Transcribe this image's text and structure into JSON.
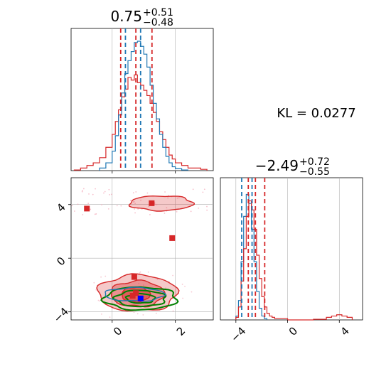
{
  "figure": {
    "kl_text": "KL = 0.0277",
    "title_1": {
      "value": "0.75",
      "sup": "+0.51",
      "sub": "−0.48"
    },
    "title_2": {
      "value": "−2.49",
      "sup": "+0.72",
      "sub": "−0.55"
    }
  },
  "colors": {
    "red": "#d62728",
    "blue": "#1f77b4",
    "green": "#008000",
    "grid": "#b0b0b0"
  },
  "chart_data": [
    {
      "type": "histogram",
      "panel": "marginal-1",
      "xlim": [
        -1.3,
        3.2
      ],
      "xticks": [
        0,
        2
      ],
      "dashed_lines_red": [
        0.27,
        0.75,
        1.26
      ],
      "dashed_lines_blue": [
        0.42,
        0.9
      ],
      "series": [
        {
          "color": "red",
          "bins": [
            -1.2,
            -1.0,
            -0.8,
            -0.6,
            -0.4,
            -0.2,
            0.0,
            0.1,
            0.2,
            0.3,
            0.4,
            0.5,
            0.6,
            0.7,
            0.8,
            0.9,
            1.0,
            1.1,
            1.2,
            1.3,
            1.4,
            1.5,
            1.6,
            1.7,
            1.8,
            1.9,
            2.0,
            2.2,
            2.4,
            2.6,
            2.8,
            3.0
          ],
          "counts": [
            0.005,
            0.02,
            0.04,
            0.06,
            0.1,
            0.18,
            0.28,
            0.38,
            0.47,
            0.57,
            0.63,
            0.72,
            0.7,
            0.74,
            0.68,
            0.66,
            0.62,
            0.58,
            0.52,
            0.45,
            0.38,
            0.3,
            0.24,
            0.18,
            0.12,
            0.09,
            0.06,
            0.04,
            0.02,
            0.02,
            0.01
          ]
        },
        {
          "color": "blue",
          "bins": [
            -0.4,
            -0.2,
            0.0,
            0.1,
            0.2,
            0.3,
            0.4,
            0.5,
            0.6,
            0.7,
            0.8,
            0.9,
            1.0,
            1.1,
            1.2,
            1.3,
            1.4,
            1.5,
            1.6,
            1.7,
            1.8,
            1.9,
            2.0,
            2.2,
            2.4
          ],
          "counts": [
            0.02,
            0.06,
            0.15,
            0.27,
            0.43,
            0.6,
            0.75,
            0.85,
            0.92,
            0.99,
            1.0,
            0.96,
            0.9,
            0.8,
            0.66,
            0.52,
            0.4,
            0.28,
            0.18,
            0.11,
            0.06,
            0.03,
            0.015,
            0.005
          ]
        }
      ]
    },
    {
      "type": "scatter",
      "panel": "joint",
      "xlim": [
        -1.3,
        3.2
      ],
      "ylim": [
        -4.6,
        6.0
      ],
      "xticks": [
        0,
        2
      ],
      "yticks": [
        -4,
        0,
        4
      ],
      "red_squares": [
        [
          -0.8,
          3.7
        ],
        [
          1.25,
          4.1
        ],
        [
          1.9,
          1.5
        ],
        [
          0.7,
          -1.4
        ],
        [
          0.75,
          -2.6
        ],
        [
          0.65,
          -2.8
        ]
      ],
      "blue_squares": [
        [
          0.9,
          -3.0
        ]
      ],
      "contours": [
        {
          "color": "red",
          "fill": true,
          "cx": 0.8,
          "cy": -2.6,
          "rx": 1.25,
          "ry": 1.35
        },
        {
          "color": "red",
          "fill": true,
          "cx": 0.8,
          "cy": -2.65,
          "rx": 0.85,
          "ry": 0.95
        },
        {
          "color": "red",
          "fill": true,
          "cx": 0.75,
          "cy": -2.7,
          "rx": 0.45,
          "ry": 0.55
        },
        {
          "color": "red",
          "fill": true,
          "cx": 1.55,
          "cy": 4.1,
          "rx": 1.0,
          "ry": 0.55
        },
        {
          "color": "green",
          "fill": false,
          "cx": 0.9,
          "cy": -3.0,
          "rx": 1.15,
          "ry": 0.85
        },
        {
          "color": "green",
          "fill": false,
          "cx": 0.9,
          "cy": -3.0,
          "rx": 0.8,
          "ry": 0.6
        },
        {
          "color": "green",
          "fill": false,
          "cx": 0.9,
          "cy": -3.0,
          "rx": 0.45,
          "ry": 0.35
        },
        {
          "color": "blue",
          "fill": false,
          "cx": 0.7,
          "cy": -2.7,
          "rx": 0.95,
          "ry": 0.5
        }
      ]
    },
    {
      "type": "histogram",
      "panel": "marginal-2",
      "xlim": [
        -5.2,
        5.8
      ],
      "xticks": [
        -4,
        0,
        4
      ],
      "dashed_lines_red": [
        -3.04,
        -2.49,
        -1.77
      ],
      "dashed_lines_blue": [
        -3.55,
        -2.75
      ],
      "series": [
        {
          "color": "blue",
          "bins": [
            -4.0,
            -3.8,
            -3.6,
            -3.4,
            -3.2,
            -3.0,
            -2.8,
            -2.6,
            -2.4,
            -2.2,
            -2.0,
            -1.8,
            -1.6
          ],
          "counts": [
            0.03,
            0.15,
            0.45,
            0.8,
            0.97,
            0.9,
            0.7,
            0.45,
            0.22,
            0.09,
            0.03,
            0.01
          ]
        },
        {
          "color": "red",
          "bins": [
            -4.0,
            -3.8,
            -3.6,
            -3.4,
            -3.2,
            -3.0,
            -2.8,
            -2.6,
            -2.4,
            -2.2,
            -2.0,
            -1.8,
            -1.6,
            -1.4,
            -1.2,
            -1.0,
            -0.5,
            0.0,
            1.0,
            2.0,
            3.0,
            3.4,
            3.8,
            4.2,
            4.6,
            5.0
          ],
          "counts": [
            0.02,
            0.1,
            0.3,
            0.55,
            0.8,
            0.92,
            0.85,
            0.7,
            0.5,
            0.32,
            0.18,
            0.1,
            0.05,
            0.03,
            0.02,
            0.01,
            0.01,
            0.0,
            0.0,
            0.005,
            0.02,
            0.03,
            0.04,
            0.03,
            0.02
          ]
        }
      ]
    }
  ]
}
